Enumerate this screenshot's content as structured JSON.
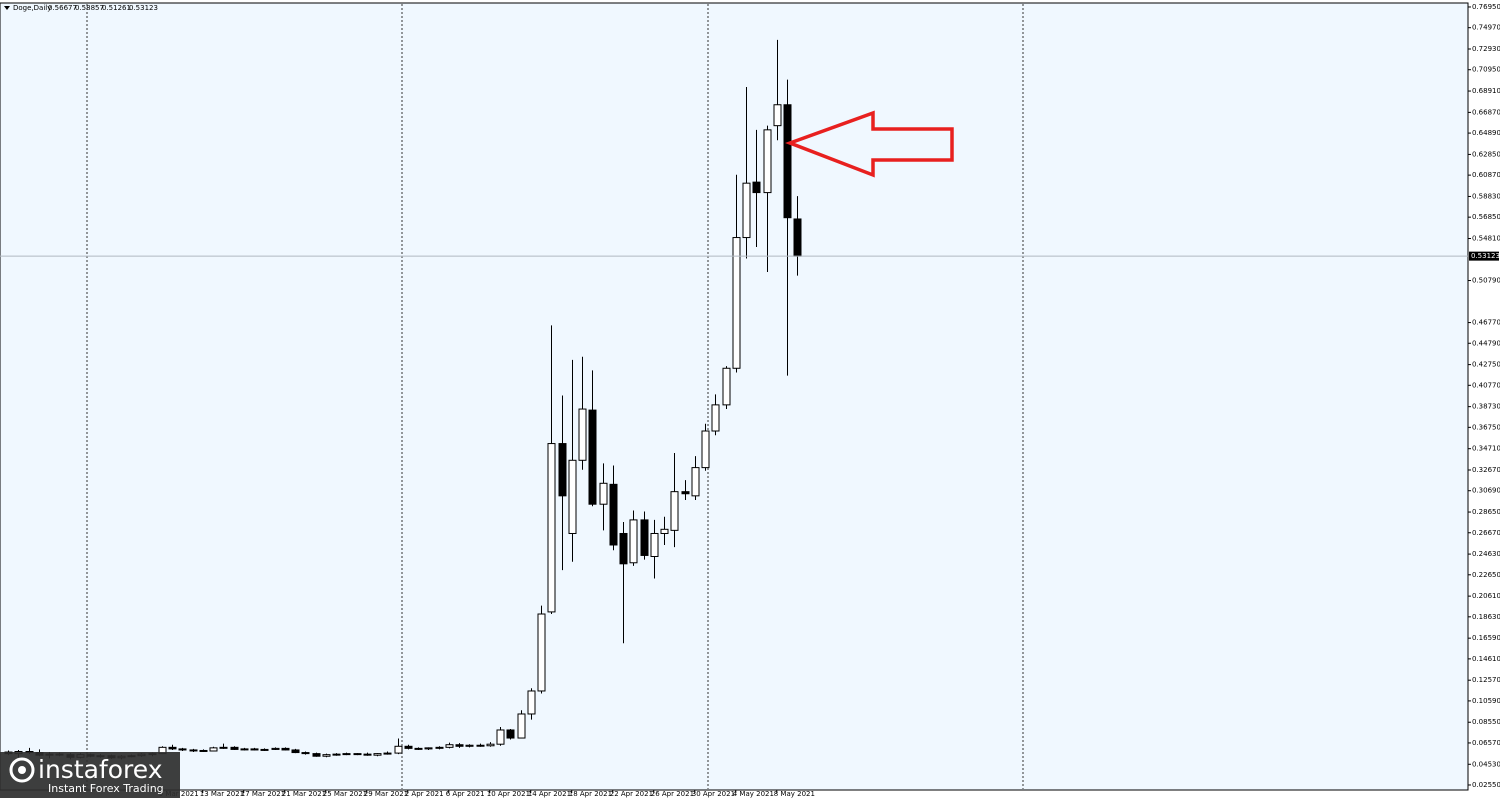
{
  "chart_data": {
    "type": "candlestick",
    "title": "Doge,Daily",
    "up_color": "#ffffff",
    "down_color": "#000000",
    "edge_color": "#000000",
    "price_line_color": "#b0b8c0",
    "categories": [
      null,
      null,
      null,
      null,
      null,
      null,
      null,
      null,
      null,
      null,
      null,
      null,
      null,
      null,
      null,
      "9 Mar 2021",
      null,
      null,
      null,
      "13 Mar 2021",
      null,
      null,
      null,
      "17 Mar 2021",
      null,
      null,
      null,
      "21 Mar 2021",
      null,
      null,
      null,
      "25 Mar 2021",
      null,
      null,
      null,
      "29 Mar 2021",
      null,
      null,
      null,
      "2 Apr 2021",
      null,
      null,
      null,
      "6 Apr 2021",
      null,
      null,
      null,
      "10 Apr 2021",
      null,
      null,
      null,
      "14 Apr 2021",
      null,
      null,
      null,
      "18 Apr 2021",
      null,
      null,
      null,
      "22 Apr 2021",
      null,
      null,
      null,
      "26 Apr 2021",
      null,
      null,
      null,
      "30 Apr 2021",
      null,
      null,
      null,
      "4 May 2021",
      null,
      null,
      null,
      "8 May 2021",
      null,
      null
    ],
    "open": [
      0.057,
      0.0555,
      0.0575,
      0.0565,
      0.054,
      0.055,
      0.0545,
      0.052,
      0.0545,
      0.053,
      0.0535,
      0.0515,
      0.053,
      0.0535,
      0.055,
      0.0555,
      0.0615,
      0.06,
      0.059,
      0.0585,
      0.058,
      0.061,
      0.0615,
      0.0595,
      0.06,
      0.059,
      0.0595,
      0.0605,
      0.059,
      0.0565,
      0.0555,
      0.053,
      0.0545,
      0.055,
      0.0555,
      0.055,
      0.054,
      0.0555,
      0.056,
      0.0625,
      0.0605,
      0.06,
      0.061,
      0.0615,
      0.064,
      0.0625,
      0.0635,
      0.063,
      0.0645,
      0.0781,
      0.0704,
      0.0934,
      0.1154,
      0.191,
      0.352,
      0.266,
      0.336,
      0.384,
      0.294,
      0.313,
      0.266,
      0.238,
      0.279,
      0.244,
      0.266,
      0.269,
      0.306,
      0.302,
      0.329,
      0.364,
      0.389,
      0.424,
      0.549,
      0.602,
      0.592,
      0.656,
      0.676,
      0.56677
    ],
    "high": [
      0.0585,
      0.059,
      0.061,
      0.0595,
      0.057,
      0.0565,
      0.056,
      0.056,
      0.0555,
      0.055,
      0.0545,
      0.054,
      0.0545,
      0.056,
      0.0565,
      0.0625,
      0.064,
      0.061,
      0.06,
      0.0595,
      0.062,
      0.065,
      0.0625,
      0.061,
      0.061,
      0.0605,
      0.0615,
      0.0615,
      0.06,
      0.0575,
      0.0565,
      0.0555,
      0.056,
      0.0565,
      0.056,
      0.0565,
      0.056,
      0.0575,
      0.07,
      0.064,
      0.0615,
      0.0615,
      0.0625,
      0.066,
      0.0655,
      0.0645,
      0.065,
      0.0665,
      0.081,
      0.079,
      0.097,
      0.118,
      0.197,
      0.465,
      0.398,
      0.432,
      0.435,
      0.422,
      0.333,
      0.331,
      0.277,
      0.288,
      0.287,
      0.279,
      0.282,
      0.343,
      0.317,
      0.34,
      0.371,
      0.399,
      0.426,
      0.609,
      0.693,
      0.652,
      0.656,
      0.738,
      0.7,
      0.58857
    ],
    "low": [
      0.054,
      0.052,
      0.055,
      0.053,
      0.051,
      0.053,
      0.05,
      0.051,
      0.052,
      0.0515,
      0.0505,
      0.05,
      0.052,
      0.0525,
      0.053,
      0.055,
      0.059,
      0.058,
      0.057,
      0.057,
      0.0575,
      0.06,
      0.059,
      0.0585,
      0.0585,
      0.058,
      0.059,
      0.0585,
      0.056,
      0.0545,
      0.0525,
      0.052,
      0.0535,
      0.054,
      0.054,
      0.0535,
      0.053,
      0.0545,
      0.055,
      0.0595,
      0.059,
      0.059,
      0.0595,
      0.0605,
      0.061,
      0.0615,
      0.062,
      0.062,
      0.063,
      0.069,
      0.07,
      0.088,
      0.113,
      0.189,
      0.231,
      0.239,
      0.327,
      0.292,
      0.269,
      0.25,
      0.161,
      0.235,
      0.241,
      0.223,
      0.255,
      0.253,
      0.298,
      0.298,
      0.326,
      0.36,
      0.385,
      0.42,
      0.529,
      0.54,
      0.516,
      0.642,
      0.417,
      0.51261
    ],
    "close": [
      0.0555,
      0.0575,
      0.0565,
      0.054,
      0.055,
      0.0545,
      0.052,
      0.0545,
      0.053,
      0.0535,
      0.0515,
      0.053,
      0.0535,
      0.055,
      0.0555,
      0.0615,
      0.06,
      0.059,
      0.0585,
      0.058,
      0.061,
      0.0615,
      0.0595,
      0.06,
      0.059,
      0.0595,
      0.0605,
      0.059,
      0.0565,
      0.0555,
      0.053,
      0.0545,
      0.055,
      0.0555,
      0.055,
      0.054,
      0.0555,
      0.056,
      0.0625,
      0.0605,
      0.06,
      0.061,
      0.0615,
      0.064,
      0.0625,
      0.0635,
      0.063,
      0.0645,
      0.0781,
      0.0704,
      0.0934,
      0.1154,
      0.189,
      0.352,
      0.302,
      0.336,
      0.385,
      0.294,
      0.314,
      0.255,
      0.237,
      0.279,
      0.245,
      0.266,
      0.27,
      0.306,
      0.304,
      0.329,
      0.364,
      0.389,
      0.424,
      0.549,
      0.601,
      0.592,
      0.652,
      0.676,
      0.568,
      0.53123
    ],
    "ylim": [
      0.0207,
      0.7733
    ],
    "yticks": [
      {
        "value": 0.0255,
        "label": "0.02550"
      },
      {
        "value": 0.0453,
        "label": "0.04530"
      },
      {
        "value": 0.0657,
        "label": "0.06570"
      },
      {
        "value": 0.0855,
        "label": "0.08550"
      },
      {
        "value": 0.1059,
        "label": "0.10590"
      },
      {
        "value": 0.1257,
        "label": "0.12570"
      },
      {
        "value": 0.1461,
        "label": "0.14610"
      },
      {
        "value": 0.1659,
        "label": "0.16590"
      },
      {
        "value": 0.1863,
        "label": "0.18630"
      },
      {
        "value": 0.2061,
        "label": "0.20610"
      },
      {
        "value": 0.2265,
        "label": "0.22650"
      },
      {
        "value": 0.2463,
        "label": "0.24630"
      },
      {
        "value": 0.2667,
        "label": "0.26670"
      },
      {
        "value": 0.2865,
        "label": "0.28650"
      },
      {
        "value": 0.3069,
        "label": "0.30690"
      },
      {
        "value": 0.3267,
        "label": "0.32670"
      },
      {
        "value": 0.3471,
        "label": "0.34710"
      },
      {
        "value": 0.3675,
        "label": "0.36750"
      },
      {
        "value": 0.3873,
        "label": "0.38730"
      },
      {
        "value": 0.4077,
        "label": "0.40770"
      },
      {
        "value": 0.4275,
        "label": "0.42750"
      },
      {
        "value": 0.4479,
        "label": "0.44790"
      },
      {
        "value": 0.4677,
        "label": "0.46770"
      },
      {
        "value": 0.5079,
        "label": "0.50790"
      },
      {
        "value": 0.5481,
        "label": "0.54810"
      },
      {
        "value": 0.5685,
        "label": "0.56850"
      },
      {
        "value": 0.5883,
        "label": "0.58830"
      },
      {
        "value": 0.6087,
        "label": "0.60870"
      },
      {
        "value": 0.6285,
        "label": "0.62850"
      },
      {
        "value": 0.6489,
        "label": "0.64890"
      },
      {
        "value": 0.6687,
        "label": "0.66870"
      },
      {
        "value": 0.6891,
        "label": "0.68910"
      },
      {
        "value": 0.7095,
        "label": "0.70950"
      },
      {
        "value": 0.7293,
        "label": "0.72930"
      },
      {
        "value": 0.7497,
        "label": "0.74970"
      },
      {
        "value": 0.7695,
        "label": "0.76950"
      }
    ]
  },
  "watermark": {
    "brand": "instaforex",
    "tagline": "Instant Forex Trading"
  }
}
